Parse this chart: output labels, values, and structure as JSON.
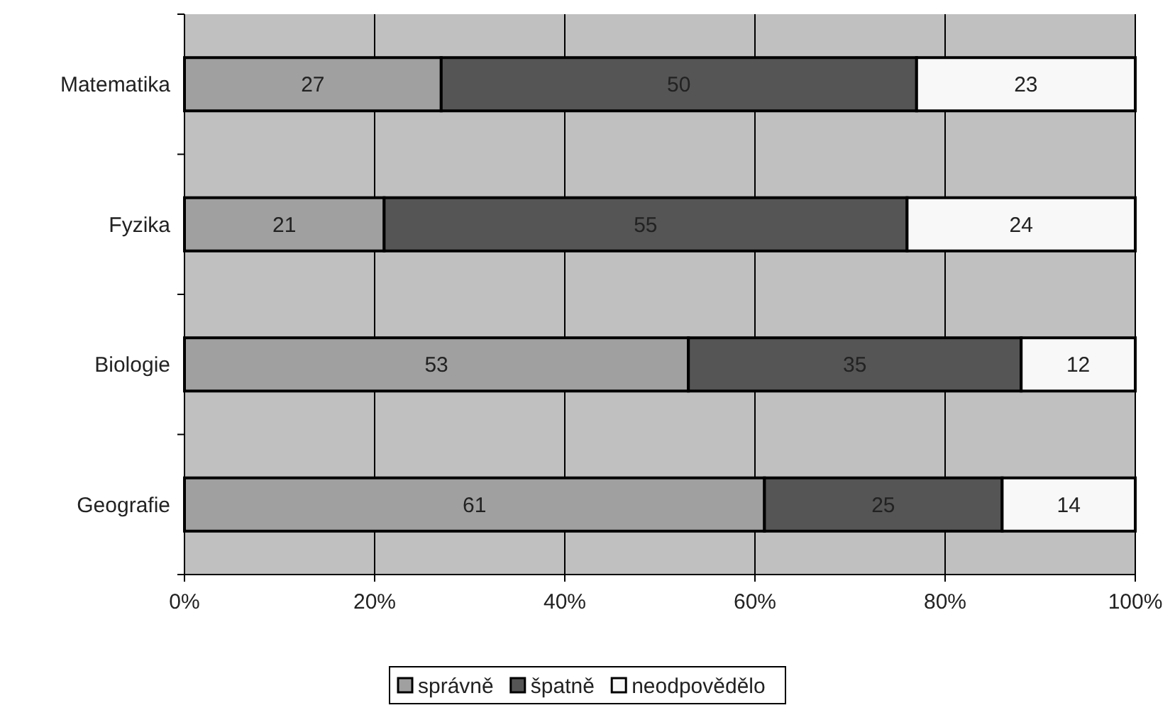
{
  "chart_data": {
    "type": "bar",
    "orientation": "horizontal",
    "stacked": true,
    "categories": [
      "Matematika",
      "Fyzika",
      "Biologie",
      "Geografie"
    ],
    "series": [
      {
        "name": "správně",
        "color": "#a0a0a0",
        "values": [
          27,
          21,
          53,
          61
        ]
      },
      {
        "name": "špatně",
        "color": "#555555",
        "values": [
          50,
          55,
          35,
          25
        ]
      },
      {
        "name": "neodpovědělo",
        "color": "#f8f8f8",
        "values": [
          23,
          24,
          12,
          14
        ]
      }
    ],
    "xlim": [
      0,
      100
    ],
    "xticks": [
      {
        "value": 0,
        "label": "0%"
      },
      {
        "value": 20,
        "label": "20%"
      },
      {
        "value": 40,
        "label": "40%"
      },
      {
        "value": 60,
        "label": "60%"
      },
      {
        "value": 80,
        "label": "80%"
      },
      {
        "value": 100,
        "label": "100%"
      }
    ],
    "grid": "x",
    "legend": "bottom",
    "data_labels": true
  }
}
